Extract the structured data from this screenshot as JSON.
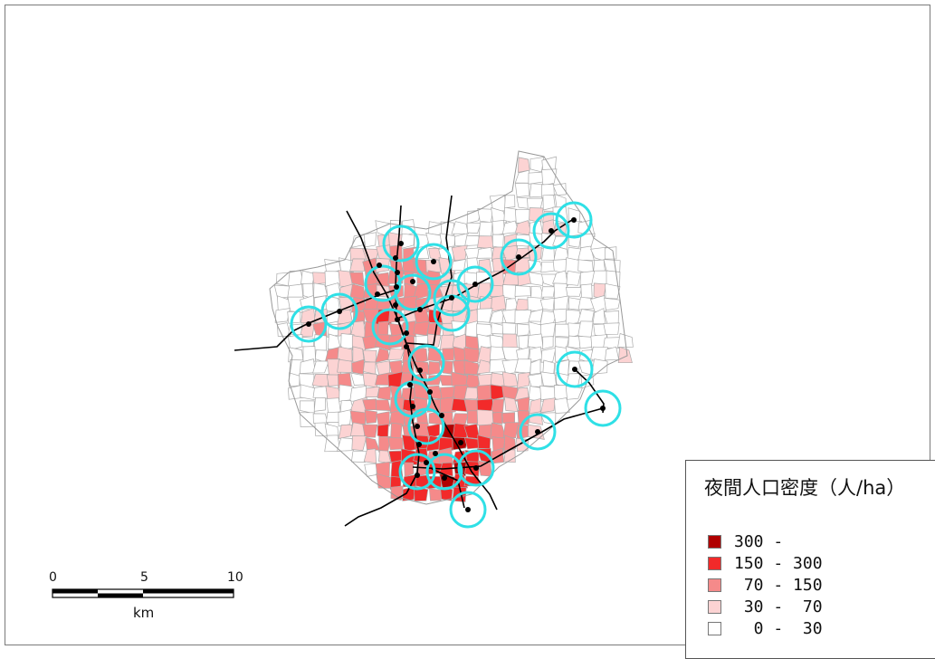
{
  "map": {
    "legend": {
      "title": "夜間人口密度（人/ha）",
      "classes": [
        {
          "label": "300 -",
          "color": "#b00000"
        },
        {
          "label": "150 - 300",
          "color": "#f22a2a"
        },
        {
          "label": " 70 - 150",
          "color": "#f58a8a"
        },
        {
          "label": " 30 -  70",
          "color": "#fcd3d3"
        },
        {
          "label": "  0 -  30",
          "color": "#ffffff"
        }
      ]
    },
    "scale_bar": {
      "ticks": [
        "0",
        "5",
        "10"
      ],
      "unit": "km"
    },
    "colors": {
      "station_buffer": "#2fe0e6",
      "railway": "#000000",
      "boundary": "#aaaaaa",
      "frame": "#7a7a7a"
    }
  }
}
